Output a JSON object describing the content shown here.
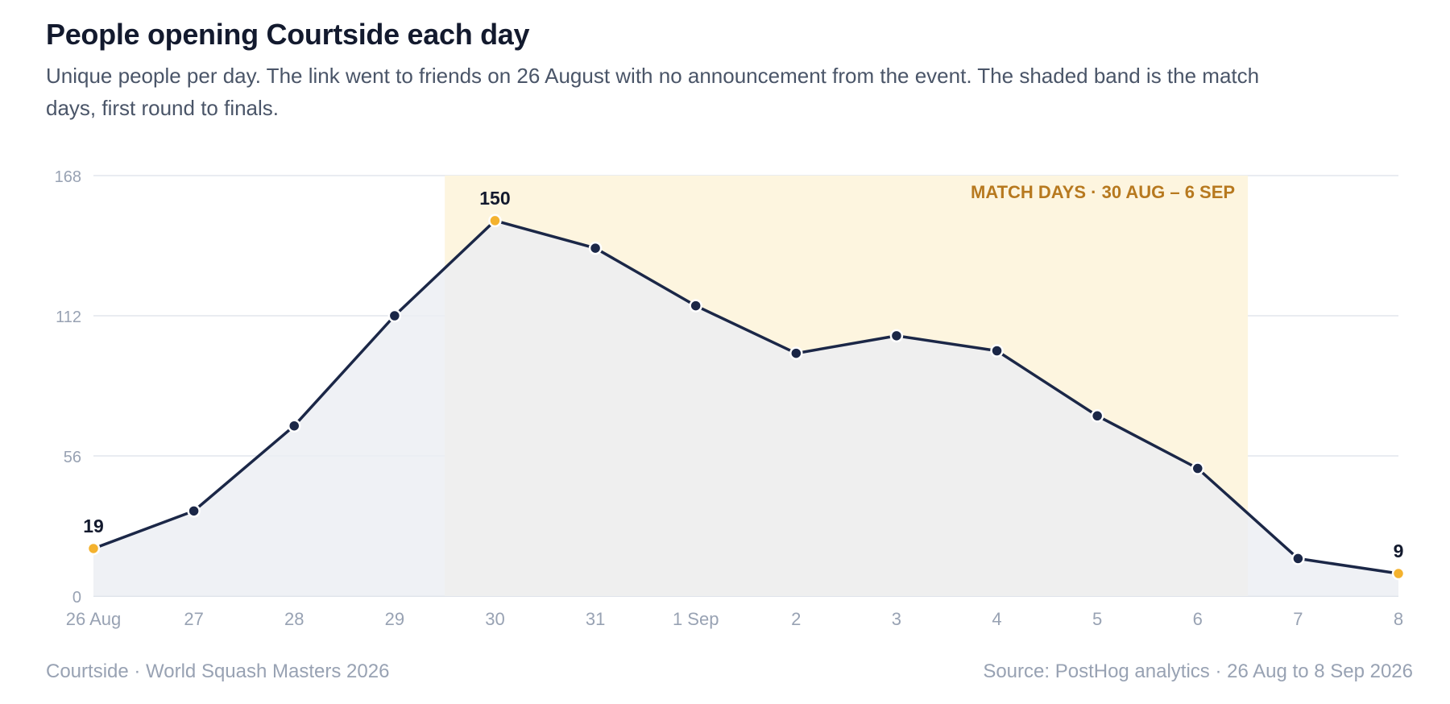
{
  "header": {
    "title": "People opening Courtside each day",
    "subtitle": "Unique people per day. The link went to friends on 26 August with no announcement from the event. The shaded band is the match days, first round to finals."
  },
  "footer": {
    "left": "Courtside · World Squash Masters 2026",
    "right": "Source: PostHog analytics · 26 Aug to 8 Sep 2026"
  },
  "colors": {
    "line": "#1b2747",
    "area": "#eceef3",
    "band": "#fdf5df",
    "band_label": "#b7791f",
    "highlight": "#f4b22e",
    "grid": "#e9ecf1",
    "tick": "#98a2b3"
  },
  "chart_data": {
    "type": "line",
    "x": [
      "26 Aug",
      "27",
      "28",
      "29",
      "30",
      "31",
      "1 Sep",
      "2",
      "3",
      "4",
      "5",
      "6",
      "7",
      "8"
    ],
    "values": [
      19,
      34,
      68,
      112,
      150,
      139,
      116,
      97,
      104,
      98,
      72,
      51,
      15,
      9
    ],
    "ylim": [
      0,
      168
    ],
    "yticks": [
      "0",
      "56",
      "112",
      "168"
    ],
    "grid": true,
    "band": {
      "start_index": 4,
      "end_index": 11,
      "label": "MATCH DAYS · 30 AUG – 6 SEP"
    },
    "labelled_points": [
      {
        "index": 0,
        "label": "19"
      },
      {
        "index": 4,
        "label": "150"
      },
      {
        "index": 13,
        "label": "9"
      }
    ]
  }
}
